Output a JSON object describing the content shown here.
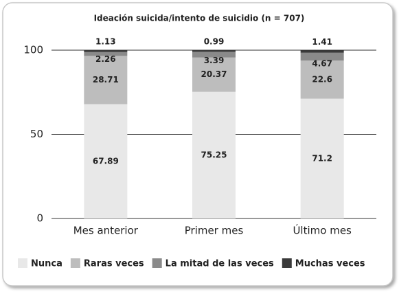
{
  "chart_data": {
    "type": "stacked_bar",
    "title": "Ideación suicida/intento de suicidio (n = 707)",
    "categories": [
      "Mes anterior",
      "Primer mes",
      "Último mes"
    ],
    "series": [
      {
        "name": "Nunca",
        "color": "#e8e8e8",
        "values": [
          67.89,
          75.25,
          71.2
        ]
      },
      {
        "name": "Raras veces",
        "color": "#bdbdbd",
        "values": [
          28.71,
          20.37,
          22.6
        ]
      },
      {
        "name": "La mitad de las veces",
        "color": "#8a8a8a",
        "values": [
          2.26,
          3.39,
          4.67
        ]
      },
      {
        "name": "Muchas veces",
        "color": "#3a3a3a",
        "values": [
          1.13,
          0.99,
          1.41
        ]
      }
    ],
    "ylim": [
      0,
      100
    ],
    "yticks": [
      0,
      50,
      100
    ],
    "grid": true
  }
}
